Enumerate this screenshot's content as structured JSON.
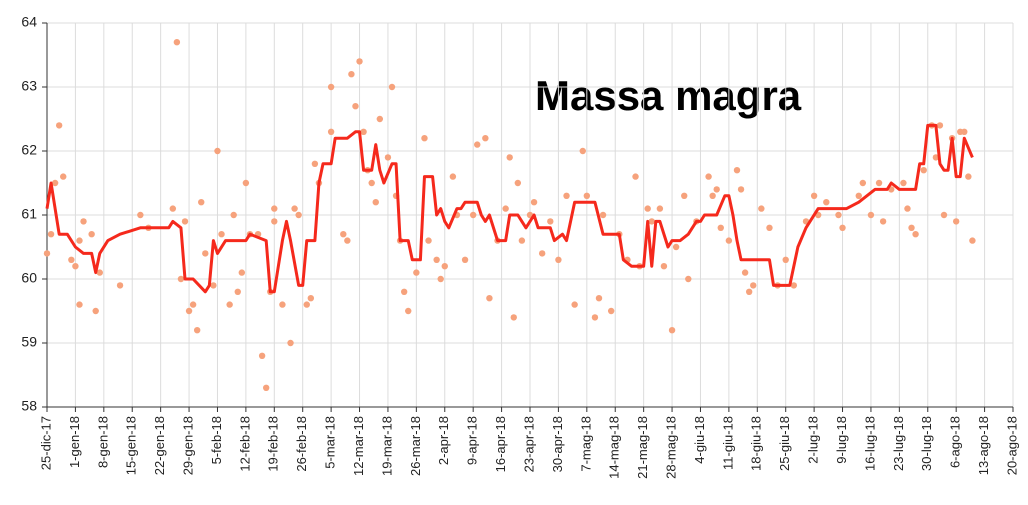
{
  "chart_data": {
    "type": "line",
    "title": "Massa magra",
    "grid": true,
    "xlim": [
      "2017-12-25",
      "2018-08-20"
    ],
    "ylim": [
      58,
      64
    ],
    "yticks": [
      58,
      59,
      60,
      61,
      62,
      63,
      64
    ],
    "xticks": [
      {
        "value": "2017-12-25",
        "label": "25-dic-17"
      },
      {
        "value": "2018-01-01",
        "label": "1-gen-18"
      },
      {
        "value": "2018-01-08",
        "label": "8-gen-18"
      },
      {
        "value": "2018-01-15",
        "label": "15-gen-18"
      },
      {
        "value": "2018-01-22",
        "label": "22-gen-18"
      },
      {
        "value": "2018-01-29",
        "label": "29-gen-18"
      },
      {
        "value": "2018-02-05",
        "label": "5-feb-18"
      },
      {
        "value": "2018-02-12",
        "label": "12-feb-18"
      },
      {
        "value": "2018-02-19",
        "label": "19-feb-18"
      },
      {
        "value": "2018-02-26",
        "label": "26-feb-18"
      },
      {
        "value": "2018-03-05",
        "label": "5-mar-18"
      },
      {
        "value": "2018-03-12",
        "label": "12-mar-18"
      },
      {
        "value": "2018-03-19",
        "label": "19-mar-18"
      },
      {
        "value": "2018-03-26",
        "label": "26-mar-18"
      },
      {
        "value": "2018-04-02",
        "label": "2-apr-18"
      },
      {
        "value": "2018-04-09",
        "label": "9-apr-18"
      },
      {
        "value": "2018-04-16",
        "label": "16-apr-18"
      },
      {
        "value": "2018-04-23",
        "label": "23-apr-18"
      },
      {
        "value": "2018-04-30",
        "label": "30-apr-18"
      },
      {
        "value": "2018-05-07",
        "label": "7-mag-18"
      },
      {
        "value": "2018-05-14",
        "label": "14-mag-18"
      },
      {
        "value": "2018-05-21",
        "label": "21-mag-18"
      },
      {
        "value": "2018-05-28",
        "label": "28-mag-18"
      },
      {
        "value": "2018-06-04",
        "label": "4-giu-18"
      },
      {
        "value": "2018-06-11",
        "label": "11-giu-18"
      },
      {
        "value": "2018-06-18",
        "label": "18-giu-18"
      },
      {
        "value": "2018-06-25",
        "label": "25-giu-18"
      },
      {
        "value": "2018-07-02",
        "label": "2-lug-18"
      },
      {
        "value": "2018-07-09",
        "label": "9-lug-18"
      },
      {
        "value": "2018-07-16",
        "label": "16-lug-18"
      },
      {
        "value": "2018-07-23",
        "label": "23-lug-18"
      },
      {
        "value": "2018-07-30",
        "label": "30-lug-18"
      },
      {
        "value": "2018-08-06",
        "label": "6-ago-18"
      },
      {
        "value": "2018-08-13",
        "label": "13-ago-18"
      },
      {
        "value": "2018-08-20",
        "label": "20-ago-18"
      }
    ],
    "series": [
      {
        "type": "scatter",
        "color": "#f6a27c",
        "x": [
          "2017-12-25",
          "2017-12-26",
          "2017-12-27",
          "2017-12-28",
          "2017-12-29",
          "2017-12-31",
          "2018-01-01",
          "2018-01-02",
          "2018-01-02",
          "2018-01-03",
          "2018-01-05",
          "2018-01-06",
          "2018-01-07",
          "2018-01-12",
          "2018-01-17",
          "2018-01-19",
          "2018-01-25",
          "2018-01-26",
          "2018-01-27",
          "2018-01-28",
          "2018-01-29",
          "2018-01-30",
          "2018-01-31",
          "2018-02-01",
          "2018-02-02",
          "2018-02-04",
          "2018-02-05",
          "2018-02-06",
          "2018-02-08",
          "2018-02-09",
          "2018-02-10",
          "2018-02-11",
          "2018-02-12",
          "2018-02-13",
          "2018-02-15",
          "2018-02-16",
          "2018-02-17",
          "2018-02-18",
          "2018-02-19",
          "2018-02-19",
          "2018-02-21",
          "2018-02-23",
          "2018-02-24",
          "2018-02-25",
          "2018-02-27",
          "2018-02-28",
          "2018-03-01",
          "2018-03-02",
          "2018-03-05",
          "2018-03-05",
          "2018-03-08",
          "2018-03-09",
          "2018-03-10",
          "2018-03-11",
          "2018-03-12",
          "2018-03-13",
          "2018-03-14",
          "2018-03-15",
          "2018-03-16",
          "2018-03-17",
          "2018-03-19",
          "2018-03-20",
          "2018-03-21",
          "2018-03-22",
          "2018-03-23",
          "2018-03-24",
          "2018-03-26",
          "2018-03-28",
          "2018-03-29",
          "2018-03-31",
          "2018-04-01",
          "2018-04-02",
          "2018-04-04",
          "2018-04-05",
          "2018-04-07",
          "2018-04-09",
          "2018-04-10",
          "2018-04-12",
          "2018-04-13",
          "2018-04-15",
          "2018-04-17",
          "2018-04-18",
          "2018-04-19",
          "2018-04-20",
          "2018-04-21",
          "2018-04-23",
          "2018-04-24",
          "2018-04-26",
          "2018-04-28",
          "2018-04-30",
          "2018-05-02",
          "2018-05-04",
          "2018-05-06",
          "2018-05-07",
          "2018-05-09",
          "2018-05-10",
          "2018-05-11",
          "2018-05-13",
          "2018-05-15",
          "2018-05-17",
          "2018-05-19",
          "2018-05-20",
          "2018-05-22",
          "2018-05-23",
          "2018-05-25",
          "2018-05-26",
          "2018-05-28",
          "2018-05-29",
          "2018-05-31",
          "2018-06-01",
          "2018-06-03",
          "2018-06-06",
          "2018-06-07",
          "2018-06-08",
          "2018-06-09",
          "2018-06-11",
          "2018-06-13",
          "2018-06-14",
          "2018-06-15",
          "2018-06-16",
          "2018-06-17",
          "2018-06-19",
          "2018-06-21",
          "2018-06-23",
          "2018-06-25",
          "2018-06-27",
          "2018-06-30",
          "2018-07-02",
          "2018-07-03",
          "2018-07-05",
          "2018-07-08",
          "2018-07-09",
          "2018-07-13",
          "2018-07-14",
          "2018-07-16",
          "2018-07-18",
          "2018-07-19",
          "2018-07-21",
          "2018-07-24",
          "2018-07-25",
          "2018-07-26",
          "2018-07-27",
          "2018-07-29",
          "2018-07-31",
          "2018-08-01",
          "2018-08-02",
          "2018-08-03",
          "2018-08-05",
          "2018-08-06",
          "2018-08-07",
          "2018-08-08",
          "2018-08-09",
          "2018-08-10"
        ],
        "values": [
          60.4,
          60.7,
          61.5,
          62.4,
          61.6,
          60.3,
          60.2,
          60.6,
          59.6,
          60.9,
          60.7,
          59.5,
          60.1,
          59.9,
          61.0,
          60.8,
          61.1,
          63.7,
          60.0,
          60.9,
          59.5,
          59.6,
          59.2,
          61.2,
          60.4,
          59.9,
          62.0,
          60.7,
          59.6,
          61.0,
          59.8,
          60.1,
          61.5,
          60.7,
          60.7,
          58.8,
          58.3,
          59.8,
          61.1,
          60.9,
          59.6,
          59.0,
          61.1,
          61.0,
          59.6,
          59.7,
          61.8,
          61.5,
          62.3,
          63.0,
          60.7,
          60.6,
          63.2,
          62.7,
          63.4,
          62.3,
          61.7,
          61.5,
          61.2,
          62.5,
          61.9,
          63.0,
          61.3,
          60.6,
          59.8,
          59.5,
          60.1,
          62.2,
          60.6,
          60.3,
          60.0,
          60.2,
          61.6,
          61.0,
          60.3,
          61.0,
          62.1,
          62.2,
          59.7,
          60.6,
          61.1,
          61.9,
          59.4,
          61.5,
          60.6,
          61.0,
          61.2,
          60.4,
          60.9,
          60.3,
          61.3,
          59.6,
          62.0,
          61.3,
          59.4,
          59.7,
          61.0,
          59.5,
          60.7,
          60.3,
          61.6,
          60.2,
          61.1,
          60.9,
          61.1,
          60.2,
          59.2,
          60.5,
          61.3,
          60.0,
          60.9,
          61.6,
          61.3,
          61.4,
          60.8,
          60.6,
          61.7,
          61.4,
          60.1,
          59.8,
          59.9,
          61.1,
          60.8,
          59.9,
          60.3,
          59.9,
          60.9,
          61.3,
          61.0,
          61.2,
          61.0,
          60.8,
          61.3,
          61.5,
          61.0,
          61.5,
          60.9,
          61.4,
          61.5,
          61.1,
          60.8,
          60.7,
          61.7,
          62.4,
          61.9,
          62.4,
          61.0,
          62.2,
          60.9,
          62.3,
          62.3,
          61.6,
          60.6
        ]
      },
      {
        "type": "line",
        "color": "#f5291c",
        "x": [
          "2017-12-25",
          "2017-12-26",
          "2017-12-28",
          "2017-12-30",
          "2018-01-01",
          "2018-01-03",
          "2018-01-05",
          "2018-01-06",
          "2018-01-07",
          "2018-01-09",
          "2018-01-12",
          "2018-01-17",
          "2018-01-24",
          "2018-01-25",
          "2018-01-27",
          "2018-01-28",
          "2018-01-30",
          "2018-02-02",
          "2018-02-03",
          "2018-02-04",
          "2018-02-05",
          "2018-02-07",
          "2018-02-12",
          "2018-02-13",
          "2018-02-17",
          "2018-02-18",
          "2018-02-19",
          "2018-02-21",
          "2018-02-22",
          "2018-02-23",
          "2018-02-25",
          "2018-02-26",
          "2018-02-27",
          "2018-03-01",
          "2018-03-02",
          "2018-03-03",
          "2018-03-05",
          "2018-03-06",
          "2018-03-09",
          "2018-03-11",
          "2018-03-12",
          "2018-03-13",
          "2018-03-15",
          "2018-03-16",
          "2018-03-17",
          "2018-03-18",
          "2018-03-20",
          "2018-03-21",
          "2018-03-22",
          "2018-03-24",
          "2018-03-25",
          "2018-03-27",
          "2018-03-28",
          "2018-03-30",
          "2018-03-31",
          "2018-04-01",
          "2018-04-02",
          "2018-04-03",
          "2018-04-05",
          "2018-04-06",
          "2018-04-07",
          "2018-04-10",
          "2018-04-11",
          "2018-04-12",
          "2018-04-13",
          "2018-04-15",
          "2018-04-17",
          "2018-04-18",
          "2018-04-20",
          "2018-04-21",
          "2018-04-22",
          "2018-04-24",
          "2018-04-25",
          "2018-04-28",
          "2018-04-29",
          "2018-05-01",
          "2018-05-02",
          "2018-05-04",
          "2018-05-09",
          "2018-05-11",
          "2018-05-15",
          "2018-05-16",
          "2018-05-18",
          "2018-05-21",
          "2018-05-22",
          "2018-05-23",
          "2018-05-24",
          "2018-05-25",
          "2018-05-27",
          "2018-05-28",
          "2018-05-30",
          "2018-06-01",
          "2018-06-03",
          "2018-06-04",
          "2018-06-05",
          "2018-06-08",
          "2018-06-10",
          "2018-06-11",
          "2018-06-12",
          "2018-06-13",
          "2018-06-14",
          "2018-06-21",
          "2018-06-22",
          "2018-06-26",
          "2018-06-28",
          "2018-06-30",
          "2018-07-03",
          "2018-07-10",
          "2018-07-13",
          "2018-07-15",
          "2018-07-17",
          "2018-07-20",
          "2018-07-21",
          "2018-07-23",
          "2018-07-27",
          "2018-07-28",
          "2018-07-29",
          "2018-07-30",
          "2018-08-01",
          "2018-08-02",
          "2018-08-03",
          "2018-08-04",
          "2018-08-05",
          "2018-08-06",
          "2018-08-07",
          "2018-08-08",
          "2018-08-10"
        ],
        "values": [
          61.1,
          61.5,
          60.7,
          60.7,
          60.5,
          60.4,
          60.4,
          60.1,
          60.4,
          60.6,
          60.7,
          60.8,
          60.8,
          60.9,
          60.8,
          60.0,
          60.0,
          59.8,
          59.9,
          60.6,
          60.4,
          60.6,
          60.6,
          60.7,
          60.6,
          59.8,
          59.8,
          60.6,
          60.9,
          60.6,
          59.9,
          59.9,
          60.6,
          60.6,
          61.5,
          61.8,
          61.8,
          62.2,
          62.2,
          62.3,
          62.3,
          61.7,
          61.7,
          62.1,
          61.7,
          61.5,
          61.8,
          61.8,
          60.6,
          60.6,
          60.3,
          60.3,
          61.6,
          61.6,
          61.0,
          61.1,
          60.9,
          60.8,
          61.1,
          61.1,
          61.2,
          61.2,
          61.0,
          60.9,
          61.0,
          60.6,
          60.6,
          61.0,
          61.0,
          60.9,
          60.8,
          61.0,
          60.8,
          60.8,
          60.6,
          60.7,
          60.6,
          61.2,
          61.2,
          60.7,
          60.7,
          60.3,
          60.2,
          60.2,
          60.9,
          60.2,
          60.9,
          60.9,
          60.5,
          60.6,
          60.6,
          60.7,
          60.9,
          60.9,
          61.0,
          61.0,
          61.3,
          61.3,
          61.0,
          60.6,
          60.3,
          60.3,
          59.9,
          59.9,
          60.5,
          60.8,
          61.1,
          61.1,
          61.2,
          61.3,
          61.4,
          61.4,
          61.5,
          61.4,
          61.4,
          61.8,
          61.8,
          62.4,
          62.4,
          61.8,
          61.7,
          61.7,
          62.2,
          61.6,
          61.6,
          62.2,
          61.9
        ]
      }
    ]
  }
}
